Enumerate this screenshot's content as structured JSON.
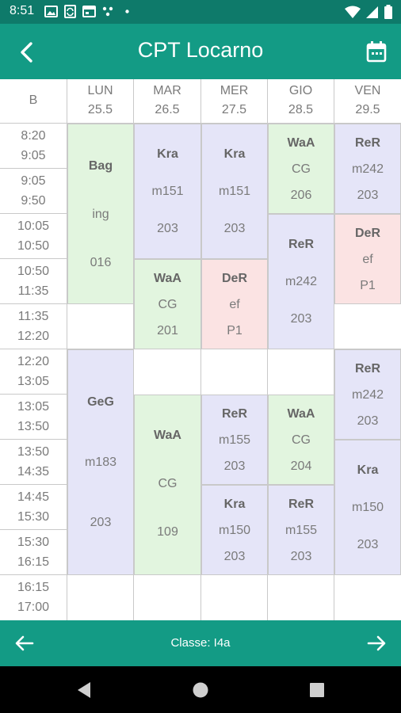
{
  "statusbar": {
    "time": "8:51"
  },
  "appbar": {
    "title": "CPT Locarno"
  },
  "header": {
    "corner": "B",
    "days": [
      {
        "name": "LUN",
        "date": "25.5"
      },
      {
        "name": "MAR",
        "date": "26.5"
      },
      {
        "name": "MER",
        "date": "27.5"
      },
      {
        "name": "GIO",
        "date": "28.5"
      },
      {
        "name": "VEN",
        "date": "29.5"
      }
    ]
  },
  "slots": [
    {
      "start": "8:20",
      "end": "9:05"
    },
    {
      "start": "9:05",
      "end": "9:50"
    },
    {
      "start": "10:05",
      "end": "10:50"
    },
    {
      "start": "10:50",
      "end": "11:35"
    },
    {
      "start": "11:35",
      "end": "12:20"
    },
    {
      "start": "12:20",
      "end": "13:05"
    },
    {
      "start": "13:05",
      "end": "13:50"
    },
    {
      "start": "13:50",
      "end": "14:35"
    },
    {
      "start": "14:45",
      "end": "15:30"
    },
    {
      "start": "15:30",
      "end": "16:15"
    },
    {
      "start": "16:15",
      "end": "17:00"
    }
  ],
  "lessons": {
    "lun_1": {
      "teacher": "Bag",
      "subject": "ing",
      "room": "016"
    },
    "lun_2": {
      "teacher": "GeG",
      "subject": "m183",
      "room": "203"
    },
    "mar_1": {
      "teacher": "Kra",
      "subject": "m151",
      "room": "203"
    },
    "mar_2": {
      "teacher": "WaA",
      "subject": "CG",
      "room": "201"
    },
    "mar_3": {
      "teacher": "WaA",
      "subject": "CG",
      "room": "109"
    },
    "mer_1": {
      "teacher": "Kra",
      "subject": "m151",
      "room": "203"
    },
    "mer_2": {
      "teacher": "DeR",
      "subject": "ef",
      "room": "P1"
    },
    "mer_3": {
      "teacher": "ReR",
      "subject": "m155",
      "room": "203"
    },
    "mer_4": {
      "teacher": "Kra",
      "subject": "m150",
      "room": "203"
    },
    "gio_1": {
      "teacher": "WaA",
      "subject": "CG",
      "room": "206"
    },
    "gio_2": {
      "teacher": "ReR",
      "subject": "m242",
      "room": "203"
    },
    "gio_3": {
      "teacher": "WaA",
      "subject": "CG",
      "room": "204"
    },
    "gio_4": {
      "teacher": "ReR",
      "subject": "m155",
      "room": "203"
    },
    "ven_1": {
      "teacher": "ReR",
      "subject": "m242",
      "room": "203"
    },
    "ven_2": {
      "teacher": "DeR",
      "subject": "ef",
      "room": "P1"
    },
    "ven_3": {
      "teacher": "ReR",
      "subject": "m242",
      "room": "203"
    },
    "ven_4": {
      "teacher": "Kra",
      "subject": "m150",
      "room": "203"
    }
  },
  "bottombar": {
    "label": "Classe: I4a"
  },
  "colors": {
    "primary": "#139b85",
    "statusbar": "#0e7a6a",
    "lesson_purple": "#e5e5f8",
    "lesson_green": "#e2f5df",
    "lesson_pink": "#fbe3e3"
  },
  "icons": {
    "back": "arrow-back-icon",
    "calendar": "calendar-icon",
    "prev": "arrow-left-icon",
    "next": "arrow-right-icon"
  }
}
